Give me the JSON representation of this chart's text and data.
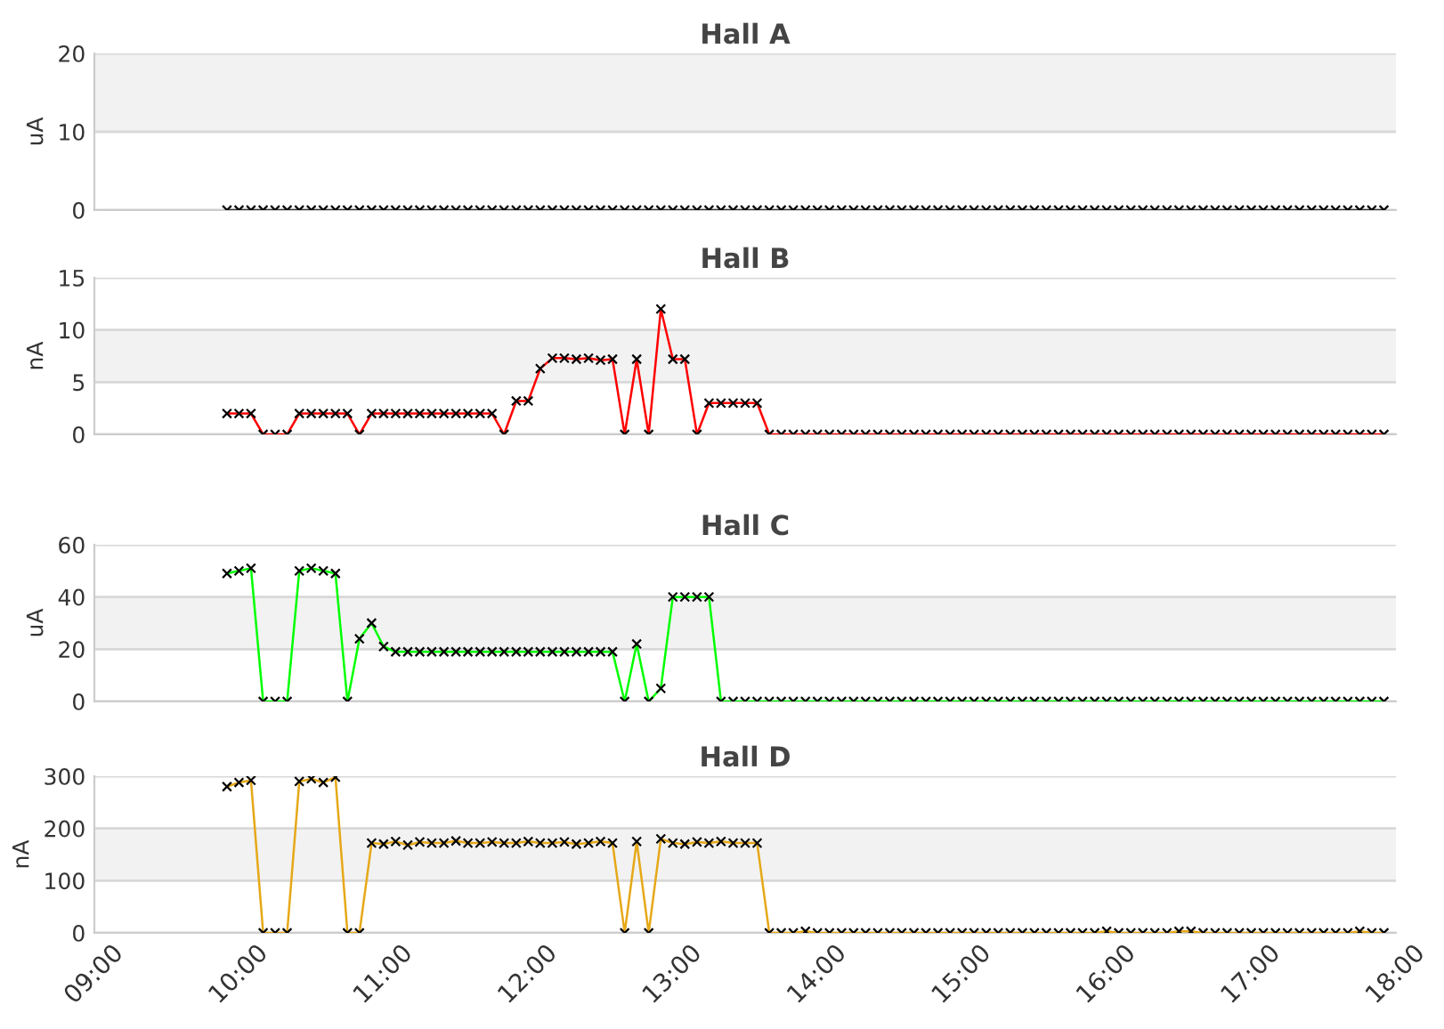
{
  "chart_data": [
    {
      "type": "line",
      "title": "Hall A",
      "ylabel": "uA",
      "legend": false,
      "grid": "y",
      "marker": "cross",
      "tick_labels": "y",
      "x": [
        9.917,
        10.0,
        10.083,
        10.167,
        10.25,
        10.333,
        10.417,
        10.5,
        10.583,
        10.667,
        10.75,
        10.833,
        10.917,
        11.0,
        11.083,
        11.167,
        11.25,
        11.333,
        11.417,
        11.5,
        11.583,
        11.667,
        11.75,
        11.833,
        11.917,
        12.0,
        12.083,
        12.167,
        12.25,
        12.333,
        12.417,
        12.5,
        12.583,
        12.667,
        12.75,
        12.833,
        12.917,
        13.0,
        13.083,
        13.167,
        13.25,
        13.333,
        13.417,
        13.5,
        13.583,
        13.667,
        13.75,
        13.833,
        13.917,
        14.0,
        14.083,
        14.167,
        14.25,
        14.333,
        14.417,
        14.5,
        14.583,
        14.667,
        14.75,
        14.833,
        14.917,
        15.0,
        15.083,
        15.167,
        15.25,
        15.333,
        15.417,
        15.5,
        15.583,
        15.667,
        15.75,
        15.833,
        15.917,
        16.0,
        16.083,
        16.167,
        16.25,
        16.333,
        16.417,
        16.5,
        16.583,
        16.667,
        16.75,
        16.833,
        16.917,
        17.0,
        17.083,
        17.167,
        17.25,
        17.333,
        17.417,
        17.5,
        17.583,
        17.667,
        17.75,
        17.833,
        17.917
      ],
      "series": [
        {
          "color": "#333333",
          "values": [
            0,
            0,
            0,
            0,
            0,
            0,
            0,
            0,
            0,
            0,
            0,
            0,
            0,
            0,
            0,
            0,
            0,
            0,
            0,
            0,
            0,
            0,
            0,
            0,
            0,
            0,
            0,
            0,
            0,
            0,
            0,
            0,
            0,
            0,
            0,
            0,
            0,
            0,
            0,
            0,
            0,
            0,
            0,
            0,
            0,
            0,
            0,
            0,
            0,
            0,
            0,
            0,
            0,
            0,
            0,
            0,
            0,
            0,
            0,
            0,
            0,
            0,
            0,
            0,
            0,
            0,
            0,
            0,
            0,
            0,
            0,
            0,
            0,
            0,
            0,
            0,
            0,
            0,
            0,
            0,
            0,
            0,
            0,
            0,
            0,
            0,
            0,
            0,
            0,
            0,
            0,
            0,
            0,
            0,
            0,
            0,
            0
          ]
        }
      ],
      "xlim": [
        9,
        18
      ],
      "ylim": [
        0,
        20
      ],
      "yticks": [
        0,
        10,
        20
      ],
      "bands": [
        {
          "axis": "y",
          "from": 10,
          "to": 20,
          "color": "#f2f2f2"
        }
      ]
    },
    {
      "type": "line",
      "title": "Hall B",
      "ylabel": "nA",
      "legend": false,
      "grid": "y",
      "marker": "cross",
      "tick_labels": "y",
      "x": [
        9.917,
        10.0,
        10.083,
        10.167,
        10.25,
        10.333,
        10.417,
        10.5,
        10.583,
        10.667,
        10.75,
        10.833,
        10.917,
        11.0,
        11.083,
        11.167,
        11.25,
        11.333,
        11.417,
        11.5,
        11.583,
        11.667,
        11.75,
        11.833,
        11.917,
        12.0,
        12.083,
        12.167,
        12.25,
        12.333,
        12.417,
        12.5,
        12.583,
        12.667,
        12.75,
        12.833,
        12.917,
        13.0,
        13.083,
        13.167,
        13.25,
        13.333,
        13.417,
        13.5,
        13.583,
        13.667,
        13.75,
        13.833,
        13.917,
        14.0,
        14.083,
        14.167,
        14.25,
        14.333,
        14.417,
        14.5,
        14.583,
        14.667,
        14.75,
        14.833,
        14.917,
        15.0,
        15.083,
        15.167,
        15.25,
        15.333,
        15.417,
        15.5,
        15.583,
        15.667,
        15.75,
        15.833,
        15.917,
        16.0,
        16.083,
        16.167,
        16.25,
        16.333,
        16.417,
        16.5,
        16.583,
        16.667,
        16.75,
        16.833,
        16.917,
        17.0,
        17.083,
        17.167,
        17.25,
        17.333,
        17.417,
        17.5,
        17.583,
        17.667,
        17.75,
        17.833,
        17.917
      ],
      "series": [
        {
          "color": "#ff0000",
          "values": [
            2,
            2,
            2,
            0,
            0,
            0,
            2,
            2,
            2,
            2,
            2,
            0,
            2,
            2,
            2,
            2,
            2,
            2,
            2,
            2,
            2,
            2,
            2,
            0,
            3.2,
            3.2,
            6.3,
            7.3,
            7.3,
            7.2,
            7.3,
            7.1,
            7.2,
            0,
            7.2,
            0,
            12,
            7.2,
            7.2,
            0,
            3,
            3,
            3,
            3,
            3,
            0,
            0,
            0,
            0,
            0,
            0,
            0,
            0,
            0,
            0,
            0,
            0,
            0,
            0,
            0,
            0,
            0,
            0,
            0,
            0,
            0,
            0,
            0,
            0,
            0,
            0,
            0,
            0,
            0,
            0,
            0,
            0,
            0,
            0,
            0,
            0,
            0,
            0,
            0,
            0,
            0,
            0,
            0,
            0,
            0,
            0,
            0,
            0,
            0,
            0,
            0,
            0
          ]
        }
      ],
      "xlim": [
        9,
        18
      ],
      "ylim": [
        0,
        15
      ],
      "yticks": [
        0,
        5,
        10,
        15
      ],
      "bands": [
        {
          "axis": "y",
          "from": 5,
          "to": 10,
          "color": "#f2f2f2"
        }
      ]
    },
    {
      "type": "line",
      "title": "Hall C",
      "ylabel": "uA",
      "legend": false,
      "grid": "y",
      "marker": "cross",
      "tick_labels": "y",
      "x": [
        9.917,
        10.0,
        10.083,
        10.167,
        10.25,
        10.333,
        10.417,
        10.5,
        10.583,
        10.667,
        10.75,
        10.833,
        10.917,
        11.0,
        11.083,
        11.167,
        11.25,
        11.333,
        11.417,
        11.5,
        11.583,
        11.667,
        11.75,
        11.833,
        11.917,
        12.0,
        12.083,
        12.167,
        12.25,
        12.333,
        12.417,
        12.5,
        12.583,
        12.667,
        12.75,
        12.833,
        12.917,
        13.0,
        13.083,
        13.167,
        13.25,
        13.333,
        13.417,
        13.5,
        13.583,
        13.667,
        13.75,
        13.833,
        13.917,
        14.0,
        14.083,
        14.167,
        14.25,
        14.333,
        14.417,
        14.5,
        14.583,
        14.667,
        14.75,
        14.833,
        14.917,
        15.0,
        15.083,
        15.167,
        15.25,
        15.333,
        15.417,
        15.5,
        15.583,
        15.667,
        15.75,
        15.833,
        15.917,
        16.0,
        16.083,
        16.167,
        16.25,
        16.333,
        16.417,
        16.5,
        16.583,
        16.667,
        16.75,
        16.833,
        16.917,
        17.0,
        17.083,
        17.167,
        17.25,
        17.333,
        17.417,
        17.5,
        17.583,
        17.667,
        17.75,
        17.833,
        17.917
      ],
      "series": [
        {
          "color": "#00ff00",
          "values": [
            49,
            50,
            51,
            0,
            0,
            0,
            50,
            51,
            50,
            49,
            0,
            24,
            30,
            21,
            19,
            19,
            19,
            19,
            19,
            19,
            19,
            19,
            19,
            19,
            19,
            19,
            19,
            19,
            19,
            19,
            19,
            19,
            19,
            0,
            22,
            0,
            5,
            40,
            40,
            40,
            40,
            0,
            0,
            0,
            0,
            0,
            0,
            0,
            0,
            0,
            0,
            0,
            0,
            0,
            0,
            0,
            0,
            0,
            0,
            0,
            0,
            0,
            0,
            0,
            0,
            0,
            0,
            0,
            0,
            0,
            0,
            0,
            0,
            0,
            0,
            0,
            0,
            0,
            0,
            0,
            0,
            0,
            0,
            0,
            0,
            0,
            0,
            0,
            0,
            0,
            0,
            0,
            0,
            0,
            0,
            0,
            0
          ]
        }
      ],
      "xlim": [
        9,
        18
      ],
      "ylim": [
        0,
        60
      ],
      "yticks": [
        0,
        20,
        40,
        60
      ],
      "bands": [
        {
          "axis": "y",
          "from": 20,
          "to": 40,
          "color": "#f2f2f2"
        }
      ]
    },
    {
      "type": "line",
      "title": "Hall D",
      "ylabel": "nA",
      "legend": false,
      "grid": "y",
      "marker": "cross",
      "x": [
        9.917,
        10.0,
        10.083,
        10.167,
        10.25,
        10.333,
        10.417,
        10.5,
        10.583,
        10.667,
        10.75,
        10.833,
        10.917,
        11.0,
        11.083,
        11.167,
        11.25,
        11.333,
        11.417,
        11.5,
        11.583,
        11.667,
        11.75,
        11.833,
        11.917,
        12.0,
        12.083,
        12.167,
        12.25,
        12.333,
        12.417,
        12.5,
        12.583,
        12.667,
        12.75,
        12.833,
        12.917,
        13.0,
        13.083,
        13.167,
        13.25,
        13.333,
        13.417,
        13.5,
        13.583,
        13.667,
        13.75,
        13.833,
        13.917,
        14.0,
        14.083,
        14.167,
        14.25,
        14.333,
        14.417,
        14.5,
        14.583,
        14.667,
        14.75,
        14.833,
        14.917,
        15.0,
        15.083,
        15.167,
        15.25,
        15.333,
        15.417,
        15.5,
        15.583,
        15.667,
        15.75,
        15.833,
        15.917,
        16.0,
        16.083,
        16.167,
        16.25,
        16.333,
        16.417,
        16.5,
        16.583,
        16.667,
        16.75,
        16.833,
        16.917,
        17.0,
        17.083,
        17.167,
        17.25,
        17.333,
        17.417,
        17.5,
        17.583,
        17.667,
        17.75,
        17.833,
        17.917
      ],
      "series": [
        {
          "color": "#e6a817",
          "values": [
            280,
            288,
            292,
            0,
            0,
            0,
            290,
            295,
            288,
            298,
            0,
            0,
            172,
            170,
            175,
            168,
            174,
            172,
            172,
            176,
            172,
            172,
            174,
            172,
            172,
            175,
            172,
            172,
            174,
            170,
            172,
            175,
            172,
            0,
            175,
            0,
            180,
            172,
            170,
            174,
            172,
            175,
            172,
            172,
            172,
            0,
            0,
            0,
            3,
            0,
            0,
            0,
            0,
            0,
            0,
            0,
            0,
            0,
            0,
            0,
            0,
            0,
            0,
            0,
            0,
            0,
            0,
            0,
            0,
            0,
            0,
            0,
            0,
            3,
            0,
            0,
            0,
            0,
            0,
            3,
            3,
            0,
            0,
            0,
            0,
            0,
            0,
            0,
            0,
            0,
            0,
            0,
            0,
            0,
            3,
            0,
            0
          ]
        }
      ],
      "xlim": [
        9,
        18
      ],
      "xticks": [
        {
          "value": 9,
          "label": "09:00"
        },
        {
          "value": 10,
          "label": "10:00"
        },
        {
          "value": 11,
          "label": "11:00"
        },
        {
          "value": 12,
          "label": "12:00"
        },
        {
          "value": 13,
          "label": "13:00"
        },
        {
          "value": 14,
          "label": "14:00"
        },
        {
          "value": 15,
          "label": "15:00"
        },
        {
          "value": 16,
          "label": "16:00"
        },
        {
          "value": 17,
          "label": "17:00"
        },
        {
          "value": 18,
          "label": "18:00"
        }
      ],
      "ylim": [
        0,
        300
      ],
      "yticks": [
        0,
        100,
        200,
        300
      ],
      "bands": [
        {
          "axis": "y",
          "from": 100,
          "to": 200,
          "color": "#f2f2f2"
        }
      ]
    }
  ]
}
